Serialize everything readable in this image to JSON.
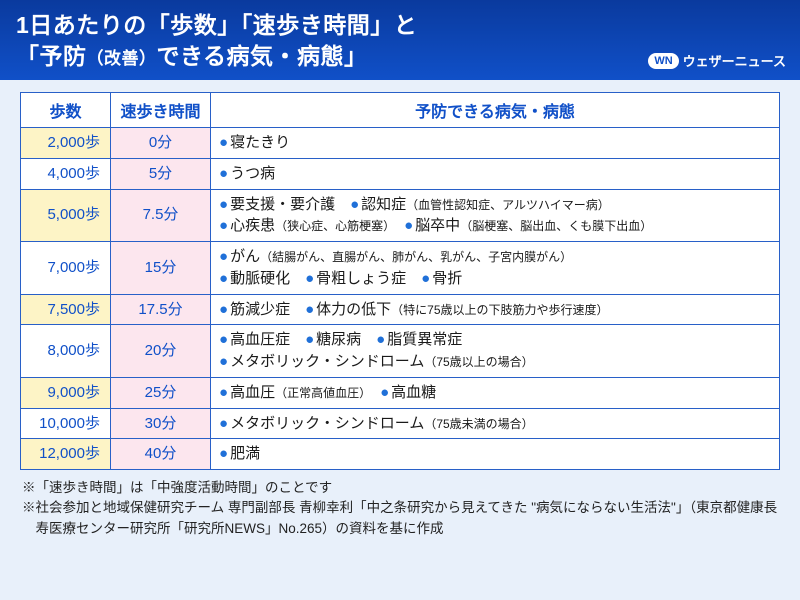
{
  "header": {
    "line1": "1日あたりの「歩数」「速歩き時間」と",
    "line2a": "「予防",
    "line2b": "（改善）",
    "line2c": "できる病気・病態」",
    "logo_badge": "WN",
    "logo_text": "ウェザーニュース"
  },
  "table": {
    "columns": [
      "歩数",
      "速歩き時間",
      "予防できる病気・病態"
    ],
    "rows": [
      {
        "cls": "y",
        "steps": "2,000歩",
        "time": "0分",
        "disease": "●寝たきり"
      },
      {
        "cls": "w",
        "steps": "4,000歩",
        "time": "5分",
        "disease": "●うつ病"
      },
      {
        "cls": "y",
        "steps": "5,000歩",
        "time": "7.5分",
        "disease": "●要支援・要介護　●認知症<span class='small'>（血管性認知症、アルツハイマー病）</span><br>●心疾患<span class='small'>（狭心症、心筋梗塞）</span>　●脳卒中<span class='small'>（脳梗塞、脳出血、くも膜下出血）</span>"
      },
      {
        "cls": "w",
        "steps": "7,000歩",
        "time": "15分",
        "disease": "●がん<span class='small'>（結腸がん、直腸がん、肺がん、乳がん、子宮内膜がん）</span><br>●動脈硬化　●骨粗しょう症　●骨折"
      },
      {
        "cls": "y",
        "steps": "7,500歩",
        "time": "17.5分",
        "disease": "●筋減少症　●体力の低下<span class='small'>（特に75歳以上の下肢筋力や歩行速度）</span>"
      },
      {
        "cls": "w",
        "steps": "8,000歩",
        "time": "20分",
        "disease": "●高血圧症　●糖尿病　●脂質異常症<br>●メタボリック・シンドローム<span class='small'>（75歳以上の場合）</span>"
      },
      {
        "cls": "y",
        "steps": "9,000歩",
        "time": "25分",
        "disease": "●高血圧<span class='small'>（正常高値血圧）</span>　●高血糖"
      },
      {
        "cls": "w",
        "steps": "10,000歩",
        "time": "30分",
        "disease": "●メタボリック・シンドローム<span class='small'>（75歳未満の場合）</span>"
      },
      {
        "cls": "y",
        "steps": "12,000歩",
        "time": "40分",
        "disease": "●肥満"
      }
    ],
    "col_widths": [
      "90px",
      "100px",
      "auto"
    ]
  },
  "notes": {
    "n1": "※「速歩き時間」は「中強度活動時間」のことです",
    "n2": "※社会参加と地域保健研究チーム 専門副部長 青柳幸利「中之条研究から見えてきた \"病気にならない生活法\"」（東京都健康長寿医療センター研究所「研究所NEWS」No.265）の資料を基に作成"
  },
  "styles": {
    "header_bg_top": "#0a3a9e",
    "header_bg_bottom": "#1050c8",
    "border_color": "#2860c8",
    "steps_yellow": "#fdf4c6",
    "time_pink": "#fce6ee",
    "bullet_color": "#2070d8",
    "page_bg": "#e8f0fa"
  }
}
